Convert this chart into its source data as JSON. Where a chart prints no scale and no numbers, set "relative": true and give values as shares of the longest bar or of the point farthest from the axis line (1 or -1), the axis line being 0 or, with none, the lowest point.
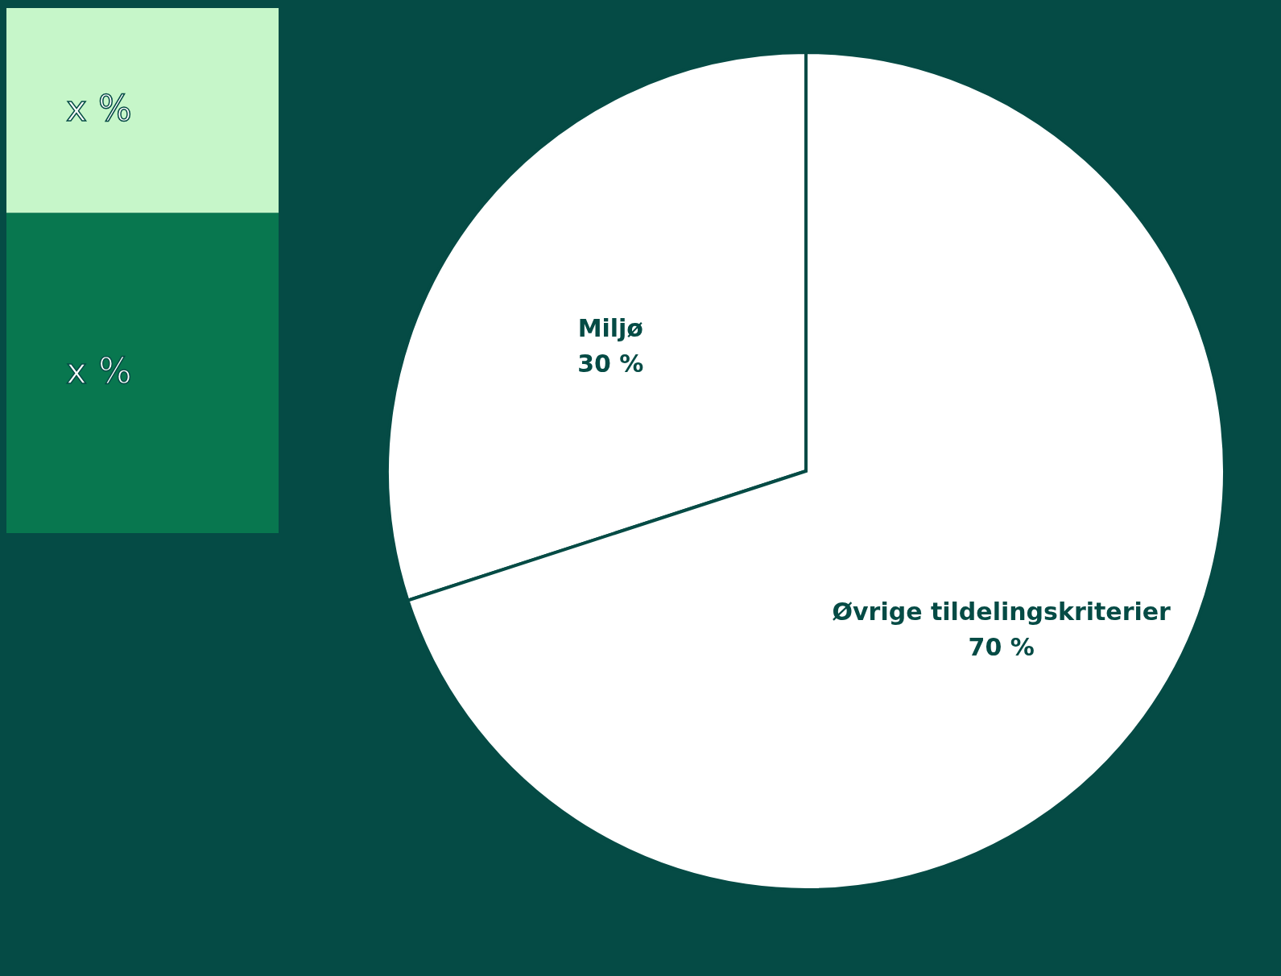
{
  "chart_data": [
    {
      "type": "bar",
      "stacked": true,
      "relative": true,
      "categories": [
        null
      ],
      "series": [
        {
          "color": "#08774f",
          "values": [
            0.61
          ]
        },
        {
          "color": "#c6f6c9",
          "values": [
            0.39
          ]
        }
      ],
      "annotations": [
        "x %",
        "x %"
      ]
    },
    {
      "type": "pie",
      "categories": [
        "Miljø",
        "Øvrige tildelingskriterier"
      ],
      "values": [
        30,
        70
      ],
      "colors": [
        "#ffffff",
        "#ffffff"
      ],
      "value_labels": [
        "30 %",
        "70 %"
      ]
    }
  ]
}
